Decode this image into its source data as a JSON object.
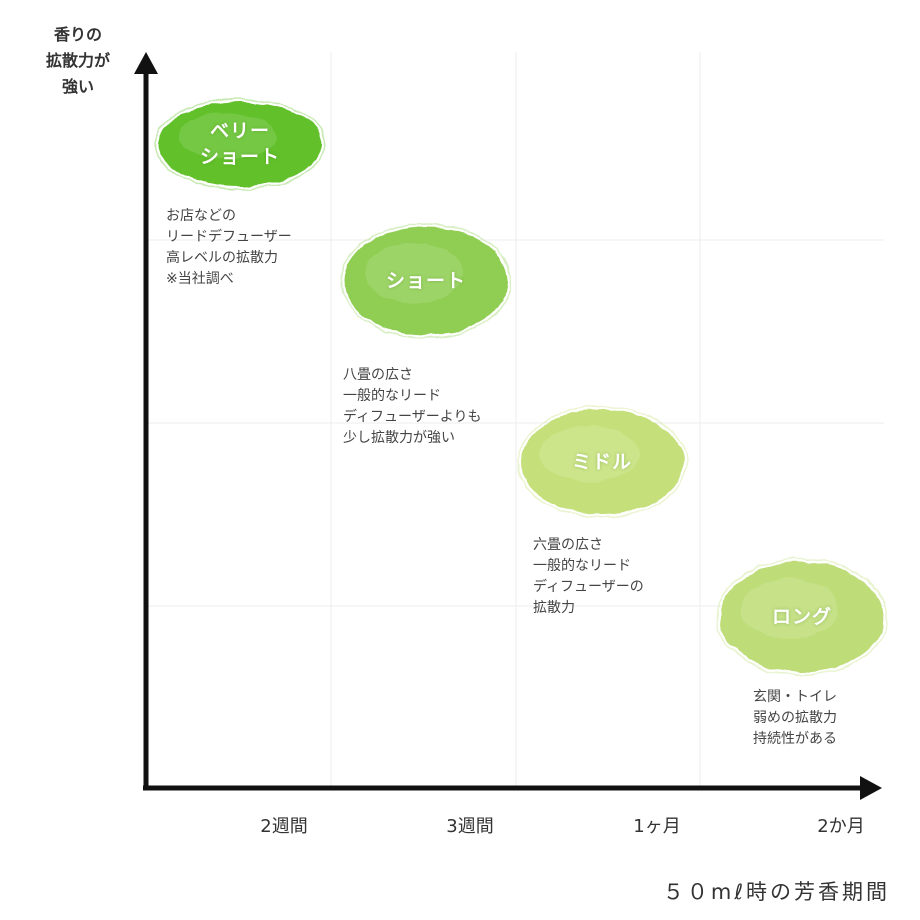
{
  "chart_data": {
    "type": "scatter",
    "xlabel": "５０mℓ時の芳香期間",
    "ylabel": [
      "香りの",
      "拡散力が",
      "強い"
    ],
    "x_ticks": [
      "2週間",
      "3週間",
      "1ヶ月",
      "2か月"
    ],
    "grid": true,
    "points": [
      {
        "name": [
          "ベリー",
          "ショート"
        ],
        "x": "2週間",
        "description": [
          "お店などの",
          "リードデフューザー",
          "高レベルの拡散力",
          "※当社調べ"
        ],
        "color": "#62c02c"
      },
      {
        "name": [
          "ショート"
        ],
        "x": "3週間",
        "description": [
          "八畳の広さ",
          "一般的なリード",
          "ディフューザーよりも",
          "少し拡散力が強い"
        ],
        "color": "#8fce52"
      },
      {
        "name": [
          "ミドル"
        ],
        "x": "1ヶ月",
        "description": [
          "六畳の広さ",
          "一般的なリード",
          "ディフューザーの",
          "拡散力"
        ],
        "color": "#c5e07a"
      },
      {
        "name": [
          "ロング"
        ],
        "x": "2か月",
        "description": [
          "玄関・トイレ",
          "弱めの拡散力",
          "持続性がある"
        ],
        "color": "#bedd78"
      }
    ]
  }
}
